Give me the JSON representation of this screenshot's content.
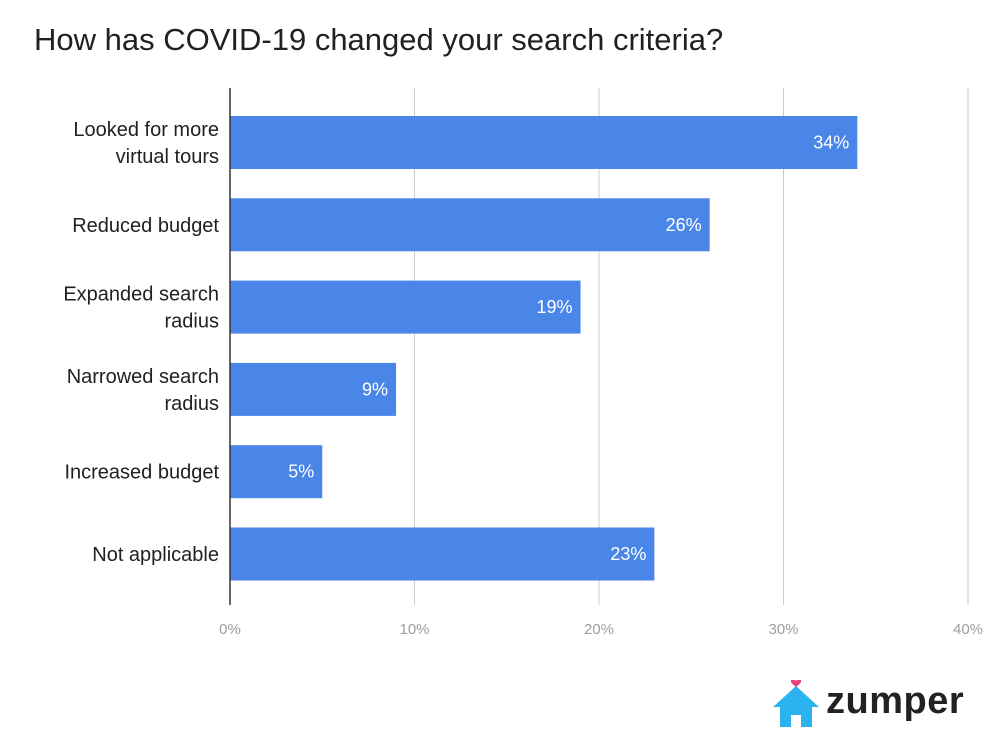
{
  "chart_data": {
    "type": "bar",
    "orientation": "horizontal",
    "title": "How has COVID-19 changed your search criteria?",
    "categories": [
      [
        "Looked for more",
        "virtual tours"
      ],
      [
        "Reduced budget"
      ],
      [
        "Expanded search",
        "radius"
      ],
      [
        "Narrowed search",
        "radius"
      ],
      [
        "Increased budget"
      ],
      [
        "Not applicable"
      ]
    ],
    "values": [
      34,
      26,
      19,
      9,
      5,
      23
    ],
    "value_labels": [
      "34%",
      "26%",
      "19%",
      "9%",
      "5%",
      "23%"
    ],
    "xlim": [
      0,
      40
    ],
    "x_ticks": [
      "0%",
      "10%",
      "20%",
      "30%",
      "40%"
    ],
    "grid": true,
    "bar_color": "#4a86e8"
  },
  "logo": {
    "text": "zumper",
    "house_color": "#2bb3f0",
    "heart_color": "#e8437c"
  }
}
